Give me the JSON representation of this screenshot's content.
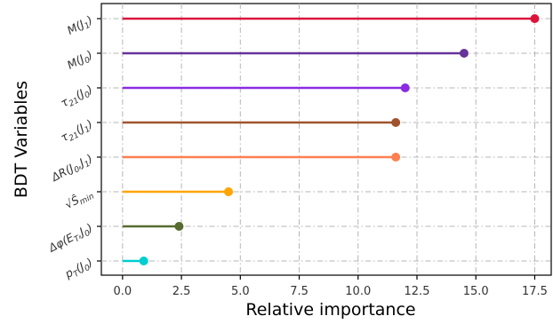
{
  "chart_data": {
    "type": "lollipop",
    "orientation": "horizontal",
    "xlabel": "Relative importance",
    "ylabel": "BDT Variables",
    "xlim": [
      -0.9,
      18.2
    ],
    "xticks": [
      0.0,
      2.5,
      5.0,
      7.5,
      10.0,
      12.5,
      15.0,
      17.5
    ],
    "xtick_labels": [
      "0.0",
      "2.5",
      "5.0",
      "7.5",
      "10.0",
      "12.5",
      "15.0",
      "17.5"
    ],
    "grid": true,
    "categories": [
      "M(J1)",
      "M(J0)",
      "τ21(J0)",
      "τ21(J1)",
      "ΔR(J0,J1)",
      "sqrt(Ŝmin)",
      "Δφ(ET,J0)",
      "pT(J0)"
    ],
    "values": [
      17.5,
      14.5,
      12.0,
      11.6,
      11.6,
      4.5,
      2.4,
      0.9
    ],
    "colors": [
      "#dc143c",
      "#663399",
      "#8a2be2",
      "#a0522d",
      "#ff7f50",
      "#ffa500",
      "#556b2f",
      "#00ced1"
    ]
  }
}
